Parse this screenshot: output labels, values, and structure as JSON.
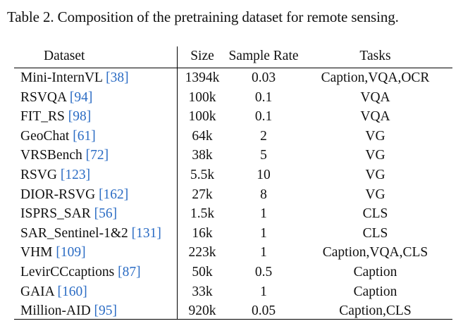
{
  "caption": "Table 2. Composition of the pretraining dataset for remote sensing.",
  "headers": {
    "dataset": "Dataset",
    "size": "Size",
    "rate": "Sample Rate",
    "tasks": "Tasks"
  },
  "rows": [
    {
      "name": "Mini-InternVL",
      "ref": "[38]",
      "size": "1394k",
      "rate": "0.03",
      "tasks": "Caption,VQA,OCR"
    },
    {
      "name": "RSVQA",
      "ref": "[94]",
      "size": "100k",
      "rate": "0.1",
      "tasks": "VQA"
    },
    {
      "name": "FIT_RS",
      "ref": "[98]",
      "size": "100k",
      "rate": "0.1",
      "tasks": "VQA"
    },
    {
      "name": "GeoChat",
      "ref": "[61]",
      "size": "64k",
      "rate": "2",
      "tasks": "VG"
    },
    {
      "name": "VRSBench",
      "ref": "[72]",
      "size": "38k",
      "rate": "5",
      "tasks": "VG"
    },
    {
      "name": "RSVG",
      "ref": "[123]",
      "size": "5.5k",
      "rate": "10",
      "tasks": "VG"
    },
    {
      "name": "DIOR-RSVG",
      "ref": "[162]",
      "size": "27k",
      "rate": "8",
      "tasks": "VG"
    },
    {
      "name": "ISPRS_SAR",
      "ref": "[56]",
      "size": "1.5k",
      "rate": "1",
      "tasks": "CLS"
    },
    {
      "name": "SAR_Sentinel-1&2",
      "ref": "[131]",
      "size": "16k",
      "rate": "1",
      "tasks": "CLS"
    },
    {
      "name": "VHM",
      "ref": "[109]",
      "size": "223k",
      "rate": "1",
      "tasks": "Caption,VQA,CLS"
    },
    {
      "name": "LevirCCcaptions",
      "ref": "[87]",
      "size": "50k",
      "rate": "0.5",
      "tasks": "Caption"
    },
    {
      "name": "GAIA",
      "ref": "[160]",
      "size": "33k",
      "rate": "1",
      "tasks": "Caption"
    },
    {
      "name": "Million-AID",
      "ref": "[95]",
      "size": "920k",
      "rate": "0.05",
      "tasks": "Caption,CLS"
    }
  ]
}
